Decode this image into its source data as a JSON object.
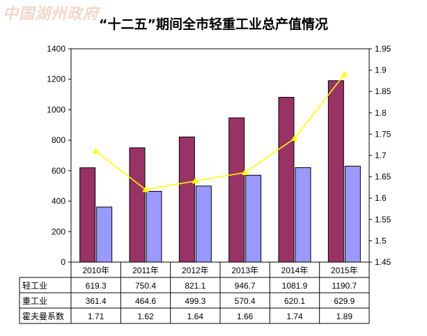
{
  "watermark": "中国湖州政府",
  "chart_data": {
    "type": "bar",
    "title": "“十二五”期间全市轻重工业总产值情况",
    "categories": [
      "2010年",
      "2011年",
      "2012年",
      "2013年",
      "2014年",
      "2015年"
    ],
    "series": [
      {
        "name": "轻工业",
        "type": "bar",
        "axis": "left",
        "color": "#993366",
        "values": [
          619.3,
          750.4,
          821.1,
          946.7,
          1081.9,
          1190.7
        ]
      },
      {
        "name": "重工业",
        "type": "bar",
        "axis": "left",
        "color": "#9999ff",
        "values": [
          361.4,
          464.6,
          499.3,
          570.4,
          620.1,
          629.9
        ]
      },
      {
        "name": "霍夫曼系数",
        "type": "line",
        "axis": "right",
        "color": "#ffff00",
        "values": [
          1.71,
          1.62,
          1.64,
          1.66,
          1.74,
          1.89
        ]
      }
    ],
    "yleft": {
      "min": 0,
      "max": 1400,
      "step": 200
    },
    "yright": {
      "min": 1.45,
      "max": 1.95,
      "step": 0.05
    },
    "grid": false,
    "legend": "data-table"
  }
}
